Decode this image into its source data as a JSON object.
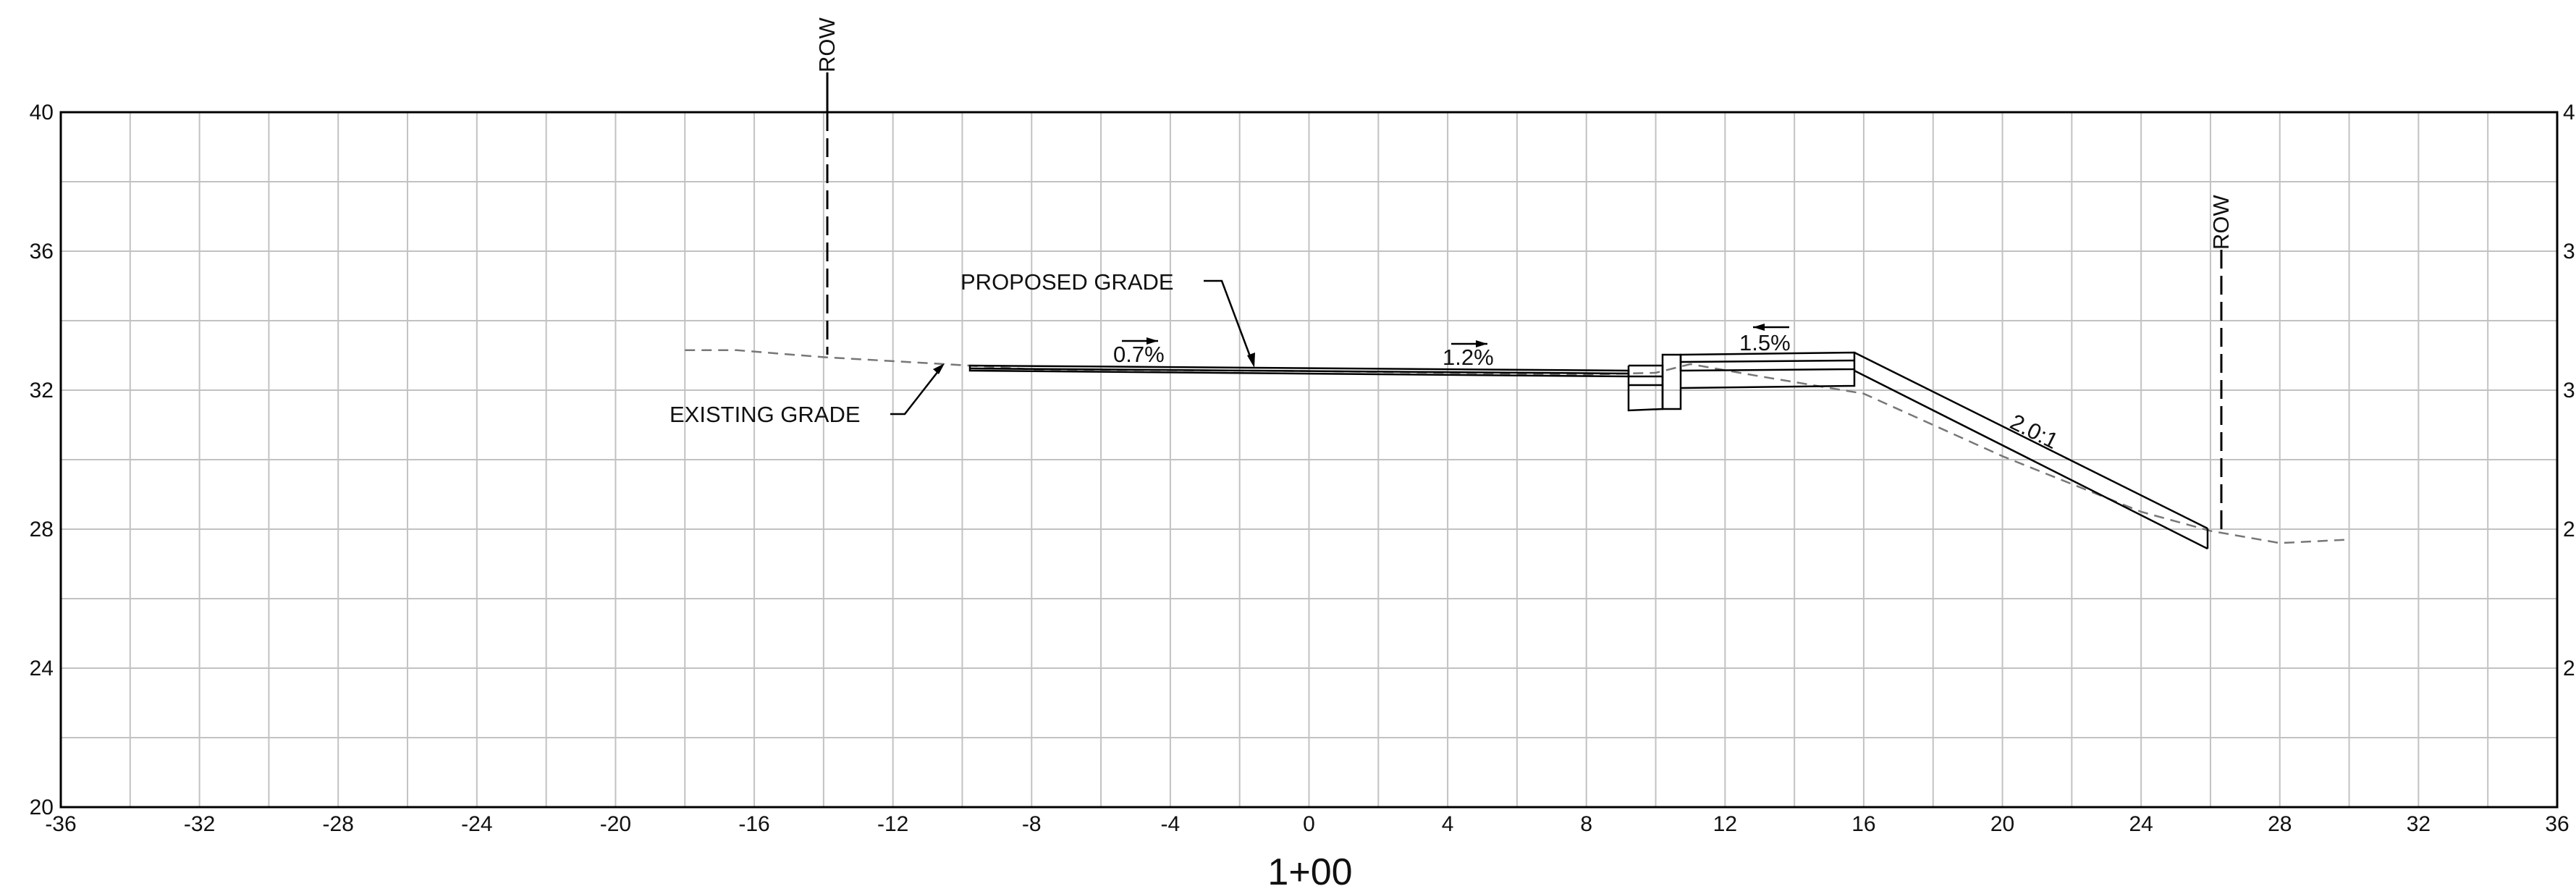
{
  "chart_data": {
    "type": "line",
    "title": "",
    "station_label": "1+00",
    "x_ticks": [
      -36,
      -32,
      -28,
      -24,
      -20,
      -16,
      -12,
      -8,
      -4,
      0,
      4,
      8,
      12,
      16,
      20,
      24,
      28,
      32,
      36
    ],
    "y_ticks_left": [
      20,
      24,
      28,
      32,
      36,
      40
    ],
    "y_ticks_right": [
      "2",
      "2",
      "3",
      "3",
      "4"
    ],
    "xlim": [
      -36,
      36
    ],
    "ylim": [
      20,
      40
    ],
    "grid": true,
    "series": [
      {
        "name": "EXISTING GRADE",
        "style": "dashed",
        "x": [
          -18,
          -16.5,
          -14,
          -10.5,
          -8,
          0,
          8,
          10,
          11,
          13,
          16,
          20,
          24,
          26,
          28,
          30
        ],
        "y": [
          33.15,
          33.15,
          32.95,
          32.75,
          32.6,
          32.55,
          32.45,
          32.5,
          32.75,
          32.4,
          31.9,
          30.1,
          28.5,
          27.95,
          27.6,
          27.7
        ]
      },
      {
        "name": "PROPOSED GRADE",
        "style": "solid",
        "x": [
          -9.8,
          9.3,
          9.3,
          10.3,
          10.3,
          10.8,
          15.6,
          25.8
        ],
        "y": [
          32.6,
          32.5,
          32.5,
          32.5,
          33.0,
          33.0,
          33.1,
          28.0
        ]
      }
    ],
    "row_lines": [
      {
        "label": "ROW",
        "x": -14,
        "y_from": 33.0,
        "y_to": 40.0
      },
      {
        "label": "ROW",
        "x": 26,
        "y_from": 27.9,
        "y_to": 36.0
      }
    ],
    "slope_labels": [
      "0.7%",
      "1.2%",
      "1.5%",
      "2.0:1"
    ],
    "annotations": [
      "PROPOSED GRADE",
      "EXISTING GRADE"
    ]
  }
}
